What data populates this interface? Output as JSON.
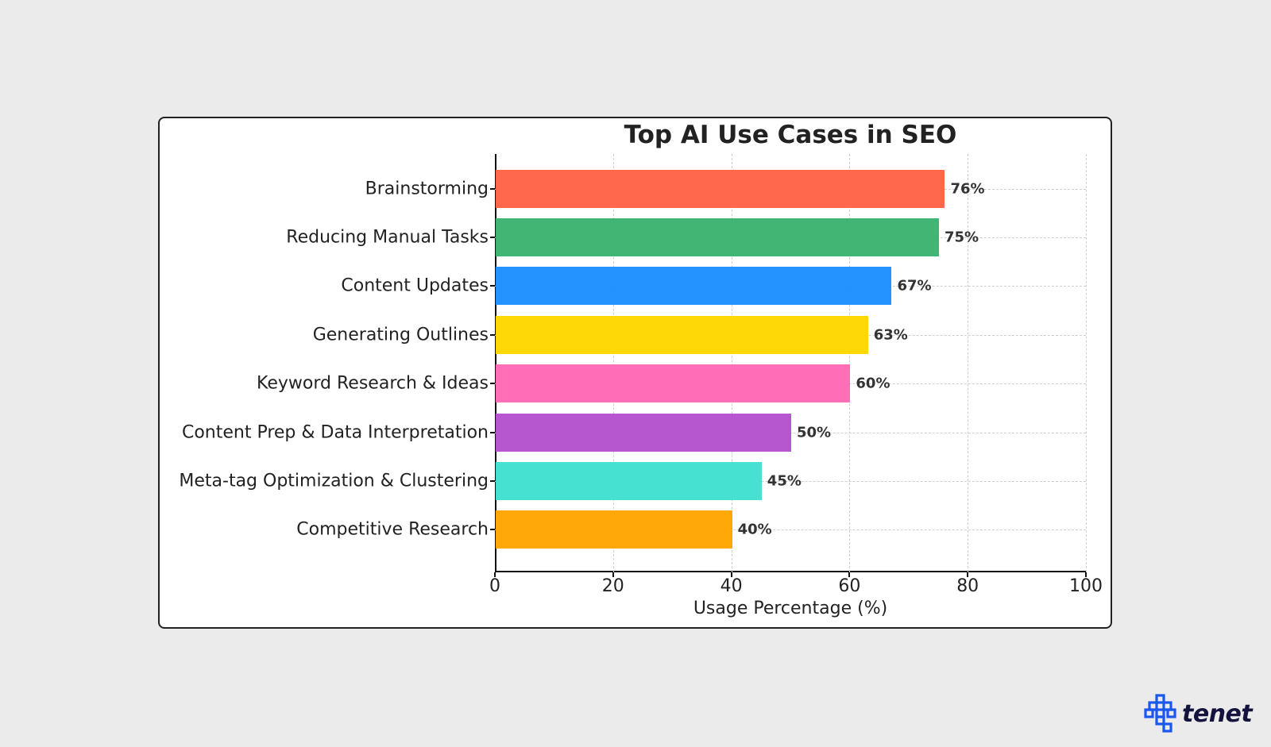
{
  "chart_data": {
    "type": "bar",
    "orientation": "horizontal",
    "title": "Top AI Use Cases in SEO",
    "xlabel": "Usage Percentage (%)",
    "ylabel": "",
    "xlim": [
      0,
      100
    ],
    "xticks": [
      "0",
      "20",
      "40",
      "60",
      "80",
      "100"
    ],
    "grid": true,
    "categories": [
      "Brainstorming",
      "Reducing Manual Tasks",
      "Content Updates",
      "Generating Outlines",
      "Keyword Research & Ideas",
      "Content Prep & Data Interpretation",
      "Meta-tag Optimization & Clustering",
      "Competitive Research"
    ],
    "values": [
      76,
      75,
      67,
      63,
      60,
      50,
      45,
      40
    ],
    "value_labels": [
      "76%",
      "75%",
      "67%",
      "63%",
      "60%",
      "50%",
      "45%",
      "40%"
    ],
    "colors": [
      "#ff6347",
      "#3cb371",
      "#1e90ff",
      "#ffd700",
      "#ff69b4",
      "#b452cd",
      "#40e0d0",
      "#ffa500"
    ]
  },
  "branding": {
    "logo_text": "tenet",
    "logo_color": "#1a56f0"
  }
}
